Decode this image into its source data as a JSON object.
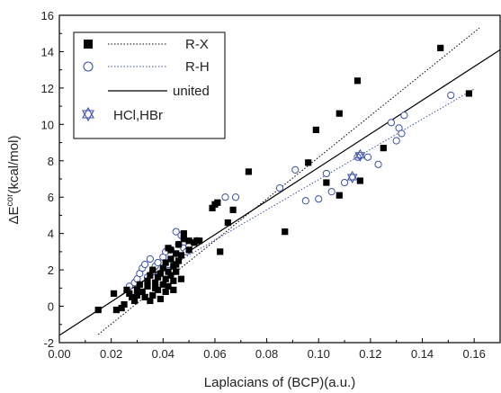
{
  "chart_data": {
    "type": "scatter",
    "xlabel": "Laplacians of (BCP)(a.u.)",
    "ylabel_main": "ΔE",
    "ylabel_sup": "cor",
    "ylabel_rest": "(kcal/mol)",
    "xlim": [
      0.0,
      0.17
    ],
    "ylim": [
      -2,
      16
    ],
    "x_ticks": [
      "0.00",
      "0.02",
      "0.04",
      "0.06",
      "0.08",
      "0.10",
      "0.12",
      "0.14",
      "0.16"
    ],
    "y_ticks": [
      "-2",
      "0",
      "2",
      "4",
      "6",
      "8",
      "10",
      "12",
      "14",
      "16"
    ],
    "grid": false,
    "legend_position": "top-left",
    "legend": [
      {
        "label": "R-X",
        "marker": "filled-square",
        "line": "dotted-black"
      },
      {
        "label": "R-H",
        "marker": "open-circle",
        "line": "dotted-blue"
      },
      {
        "label": "united",
        "marker": "none",
        "line": "solid-black"
      },
      {
        "label": "HCl,HBr",
        "marker": "open-triangle-star",
        "line": "none"
      }
    ],
    "colors": {
      "rx": "#000000",
      "rh": "#3a4fa8"
    },
    "series": [
      {
        "name": "R-X",
        "points": [
          [
            0.015,
            -0.2
          ],
          [
            0.021,
            0.7
          ],
          [
            0.022,
            -0.2
          ],
          [
            0.024,
            -0.1
          ],
          [
            0.025,
            0.1
          ],
          [
            0.026,
            0.9
          ],
          [
            0.027,
            0.7
          ],
          [
            0.028,
            0.5
          ],
          [
            0.029,
            0.3
          ],
          [
            0.03,
            0.6
          ],
          [
            0.03,
            0.9
          ],
          [
            0.031,
            1.2
          ],
          [
            0.032,
            0.8
          ],
          [
            0.033,
            0.5
          ],
          [
            0.034,
            1.1
          ],
          [
            0.034,
            1.4
          ],
          [
            0.035,
            1.7
          ],
          [
            0.035,
            0.3
          ],
          [
            0.036,
            0.6
          ],
          [
            0.036,
            2.0
          ],
          [
            0.037,
            1.3
          ],
          [
            0.037,
            1.0
          ],
          [
            0.038,
            0.9
          ],
          [
            0.038,
            1.6
          ],
          [
            0.039,
            1.8
          ],
          [
            0.039,
            0.4
          ],
          [
            0.04,
            1.2
          ],
          [
            0.04,
            2.1
          ],
          [
            0.041,
            1.5
          ],
          [
            0.041,
            2.4
          ],
          [
            0.041,
            0.8
          ],
          [
            0.042,
            1.9
          ],
          [
            0.042,
            3.2
          ],
          [
            0.042,
            1.1
          ],
          [
            0.043,
            1.7
          ],
          [
            0.043,
            2.6
          ],
          [
            0.043,
            3.1
          ],
          [
            0.044,
            2.2
          ],
          [
            0.044,
            1.4
          ],
          [
            0.044,
            0.9
          ],
          [
            0.045,
            2.9
          ],
          [
            0.045,
            1.9
          ],
          [
            0.045,
            2.3
          ],
          [
            0.046,
            2.5
          ],
          [
            0.046,
            3.4
          ],
          [
            0.047,
            1.5
          ],
          [
            0.047,
            2.8
          ],
          [
            0.048,
            3.7
          ],
          [
            0.048,
            4.0
          ],
          [
            0.05,
            3.1
          ],
          [
            0.05,
            3.6
          ],
          [
            0.052,
            3.5
          ],
          [
            0.053,
            3.6
          ],
          [
            0.054,
            3.6
          ],
          [
            0.059,
            5.4
          ],
          [
            0.06,
            5.6
          ],
          [
            0.061,
            5.7
          ],
          [
            0.062,
            3.0
          ],
          [
            0.065,
            4.6
          ],
          [
            0.067,
            5.3
          ],
          [
            0.073,
            7.4
          ],
          [
            0.087,
            4.1
          ],
          [
            0.096,
            7.9
          ],
          [
            0.099,
            9.7
          ],
          [
            0.103,
            6.8
          ],
          [
            0.108,
            10.6
          ],
          [
            0.108,
            6.1
          ],
          [
            0.115,
            12.4
          ],
          [
            0.116,
            6.9
          ],
          [
            0.125,
            8.7
          ],
          [
            0.147,
            14.2
          ],
          [
            0.158,
            11.7
          ]
        ]
      },
      {
        "name": "R-H",
        "points": [
          [
            0.027,
            1.1
          ],
          [
            0.029,
            1.3
          ],
          [
            0.03,
            1.5
          ],
          [
            0.031,
            1.8
          ],
          [
            0.032,
            2.1
          ],
          [
            0.033,
            2.3
          ],
          [
            0.034,
            1.6
          ],
          [
            0.035,
            2.6
          ],
          [
            0.036,
            1.9
          ],
          [
            0.037,
            2.2
          ],
          [
            0.038,
            2.4
          ],
          [
            0.04,
            2.7
          ],
          [
            0.041,
            3.0
          ],
          [
            0.042,
            2.3
          ],
          [
            0.043,
            3.1
          ],
          [
            0.044,
            2.6
          ],
          [
            0.045,
            4.1
          ],
          [
            0.046,
            3.4
          ],
          [
            0.047,
            3.9
          ],
          [
            0.048,
            3.2
          ],
          [
            0.049,
            3.0
          ],
          [
            0.05,
            3.3
          ],
          [
            0.053,
            3.6
          ],
          [
            0.064,
            6.0
          ],
          [
            0.068,
            6.0
          ],
          [
            0.085,
            6.5
          ],
          [
            0.091,
            7.5
          ],
          [
            0.095,
            5.8
          ],
          [
            0.1,
            5.9
          ],
          [
            0.103,
            7.3
          ],
          [
            0.105,
            6.3
          ],
          [
            0.11,
            6.8
          ],
          [
            0.115,
            8.2
          ],
          [
            0.119,
            8.2
          ],
          [
            0.123,
            7.8
          ],
          [
            0.128,
            10.1
          ],
          [
            0.13,
            9.1
          ],
          [
            0.131,
            9.8
          ],
          [
            0.132,
            9.5
          ],
          [
            0.133,
            10.5
          ],
          [
            0.151,
            11.6
          ]
        ]
      },
      {
        "name": "HCl,HBr",
        "points": [
          [
            0.113,
            7.1
          ],
          [
            0.116,
            8.3
          ]
        ]
      }
    ],
    "fit_lines": [
      {
        "name": "R-X",
        "style": "dotted",
        "color": "#000000",
        "x": [
          0.015,
          0.162
        ],
        "y": [
          -1.55,
          15.3
        ]
      },
      {
        "name": "R-H",
        "style": "dotted",
        "color": "#3a4fa8",
        "x": [
          0.024,
          0.16
        ],
        "y": [
          0.65,
          11.95
        ]
      },
      {
        "name": "united",
        "style": "solid",
        "color": "#000000",
        "x": [
          0.0,
          0.17
        ],
        "y": [
          -1.6,
          14.1
        ]
      }
    ]
  }
}
